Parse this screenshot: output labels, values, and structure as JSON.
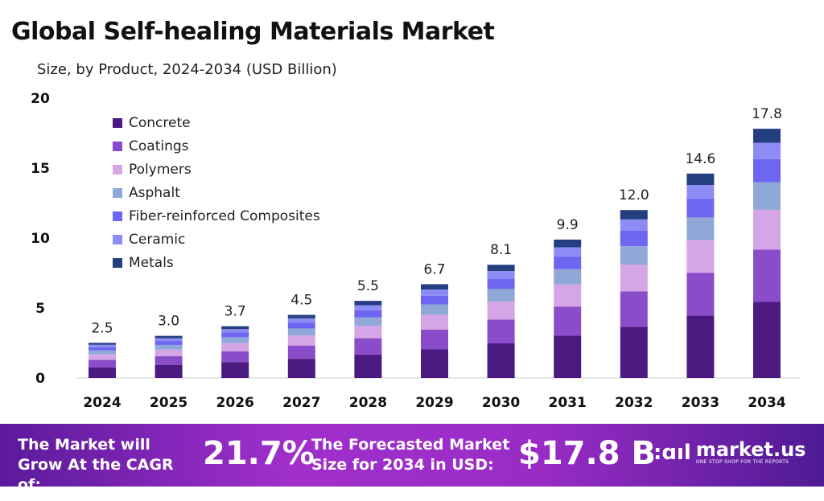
{
  "header": {
    "title": "Global Self-healing Materials Market",
    "subtitle": "Size, by Product, 2024-2034 (USD Billion)"
  },
  "chart_data": {
    "type": "bar",
    "stacked": true,
    "categories": [
      "2024",
      "2025",
      "2026",
      "2027",
      "2028",
      "2029",
      "2030",
      "2031",
      "2032",
      "2033",
      "2034"
    ],
    "totals": [
      "2.5",
      "3.0",
      "3.7",
      "4.5",
      "5.5",
      "6.7",
      "8.1",
      "9.9",
      "12.0",
      "14.6",
      "17.8"
    ],
    "ylim": [
      0,
      20
    ],
    "yticks": [
      "0",
      "5",
      "10",
      "15",
      "20"
    ],
    "grid": false,
    "legend": "top-left",
    "series": [
      {
        "name": "Concrete",
        "color": "#4a1a80",
        "values": [
          0.76,
          0.92,
          1.13,
          1.37,
          1.68,
          2.04,
          2.47,
          3.02,
          3.66,
          4.45,
          5.43
        ]
      },
      {
        "name": "Coatings",
        "color": "#8a4cc8",
        "values": [
          0.53,
          0.63,
          0.78,
          0.95,
          1.16,
          1.41,
          1.7,
          2.08,
          2.52,
          3.07,
          3.74
        ]
      },
      {
        "name": "Polymers",
        "color": "#d4a6e6",
        "values": [
          0.4,
          0.48,
          0.59,
          0.72,
          0.88,
          1.07,
          1.3,
          1.58,
          1.92,
          2.34,
          2.85
        ]
      },
      {
        "name": "Asphalt",
        "color": "#8fa8d8",
        "values": [
          0.28,
          0.33,
          0.41,
          0.5,
          0.61,
          0.74,
          0.89,
          1.09,
          1.32,
          1.61,
          1.96
        ]
      },
      {
        "name": "Fiber-reinforced Composites",
        "color": "#6e66f0",
        "values": [
          0.23,
          0.28,
          0.34,
          0.42,
          0.51,
          0.62,
          0.75,
          0.92,
          1.12,
          1.36,
          1.66
        ]
      },
      {
        "name": "Ceramic",
        "color": "#8d8cf5",
        "values": [
          0.17,
          0.2,
          0.24,
          0.3,
          0.36,
          0.44,
          0.53,
          0.65,
          0.79,
          0.96,
          1.17
        ]
      },
      {
        "name": "Metals",
        "color": "#243f80",
        "values": [
          0.14,
          0.17,
          0.21,
          0.25,
          0.31,
          0.38,
          0.45,
          0.55,
          0.67,
          0.82,
          1.0
        ]
      }
    ]
  },
  "footer": {
    "cagr_label": "The Market will Grow At the CAGR of:",
    "cagr_value": "21.7%",
    "forecast_label": "The Forecasted Market Size for 2034 in USD:",
    "forecast_value": "$17.8 B",
    "brand": "market.us",
    "tagline": "ONE STOP SHOP FOR THE REPORTS"
  }
}
